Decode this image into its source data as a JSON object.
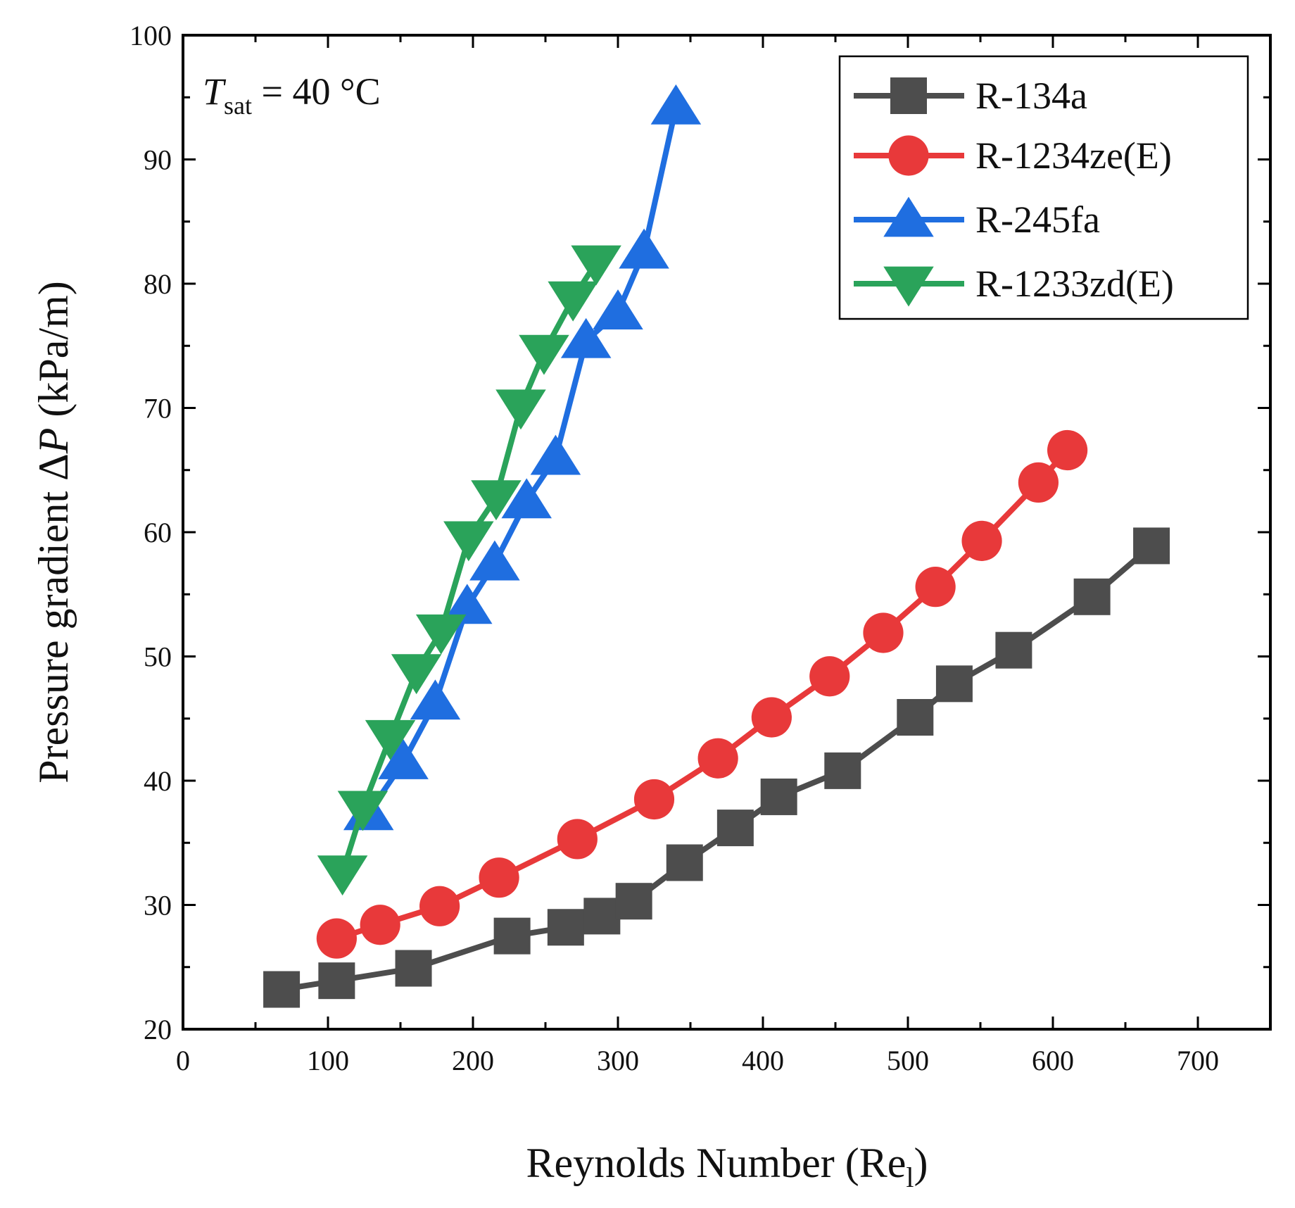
{
  "chart_data": {
    "type": "line",
    "xlabel": "Reynolds Number (Re",
    "xlabel_sub": "l",
    "xlabel_end": ")",
    "ylabel": "Pressure gradient ΔP (kPa/m)",
    "ylabel_parts": {
      "before": "Pressure gradient Δ",
      "italic": "P",
      "after": " (kPa/m)"
    },
    "xlim": [
      0,
      750
    ],
    "ylim": [
      20,
      100
    ],
    "xticks": [
      0,
      100,
      200,
      300,
      400,
      500,
      600,
      700
    ],
    "yticks": [
      20,
      30,
      40,
      50,
      60,
      70,
      80,
      90,
      100
    ],
    "annotation": {
      "symbol": "T",
      "sub": "sat",
      "rest": " = 40 °C"
    },
    "legend_position": "top-right",
    "series": [
      {
        "name": "R-134a",
        "color": "#4d4d4d",
        "marker": "square",
        "x": [
          68,
          106,
          159,
          227,
          264,
          289,
          311,
          346,
          381,
          411,
          455,
          505,
          532,
          573,
          627,
          668
        ],
        "y": [
          23.2,
          23.9,
          24.9,
          27.5,
          28.2,
          29.1,
          30.3,
          33.4,
          36.2,
          38.7,
          40.8,
          45.1,
          47.8,
          50.5,
          54.8,
          58.9
        ]
      },
      {
        "name": "R-1234ze(E)",
        "color": "#e8393a",
        "marker": "circle",
        "x": [
          106,
          136,
          177,
          218,
          272,
          325,
          369,
          406,
          446,
          483,
          519,
          551,
          590,
          610
        ],
        "y": [
          27.3,
          28.4,
          29.9,
          32.2,
          35.3,
          38.5,
          41.8,
          45.1,
          48.4,
          51.9,
          55.6,
          59.3,
          64.0,
          66.6
        ]
      },
      {
        "name": "R-245fa",
        "color": "#1f6ee0",
        "marker": "triangle-up",
        "x": [
          128,
          152,
          174,
          196,
          215,
          237,
          257,
          278,
          300,
          318,
          340
        ],
        "y": [
          37.4,
          41.5,
          46.3,
          54.0,
          57.5,
          62.5,
          66.0,
          75.4,
          77.7,
          82.6,
          94.2
        ]
      },
      {
        "name": "R-1233zd(E)",
        "color": "#2aa35a",
        "marker": "triangle-down",
        "x": [
          110,
          124,
          143,
          161,
          178,
          197,
          216,
          233,
          249,
          269,
          285
        ],
        "y": [
          32.6,
          37.8,
          43.5,
          48.8,
          52.0,
          59.5,
          62.8,
          70.1,
          74.5,
          78.8,
          81.7
        ]
      }
    ]
  }
}
